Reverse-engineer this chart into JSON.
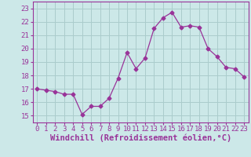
{
  "x": [
    0,
    1,
    2,
    3,
    4,
    5,
    6,
    7,
    8,
    9,
    10,
    11,
    12,
    13,
    14,
    15,
    16,
    17,
    18,
    19,
    20,
    21,
    22,
    23
  ],
  "y": [
    17.0,
    16.9,
    16.8,
    16.6,
    16.6,
    15.1,
    15.7,
    15.7,
    16.3,
    17.8,
    19.7,
    18.5,
    19.3,
    21.5,
    22.3,
    22.7,
    21.6,
    21.7,
    21.6,
    20.0,
    19.4,
    18.6,
    18.5,
    17.9
  ],
  "line_color": "#993399",
  "marker": "D",
  "marker_size": 2.5,
  "bg_color": "#cce8e8",
  "grid_color": "#aacccc",
  "xlabel": "Windchill (Refroidissement éolien,°C)",
  "ylim": [
    14.5,
    23.5
  ],
  "xlim": [
    -0.5,
    23.5
  ],
  "yticks": [
    15,
    16,
    17,
    18,
    19,
    20,
    21,
    22,
    23
  ],
  "xticks": [
    0,
    1,
    2,
    3,
    4,
    5,
    6,
    7,
    8,
    9,
    10,
    11,
    12,
    13,
    14,
    15,
    16,
    17,
    18,
    19,
    20,
    21,
    22,
    23
  ],
  "tick_fontsize": 6.5,
  "xlabel_fontsize": 7.5
}
